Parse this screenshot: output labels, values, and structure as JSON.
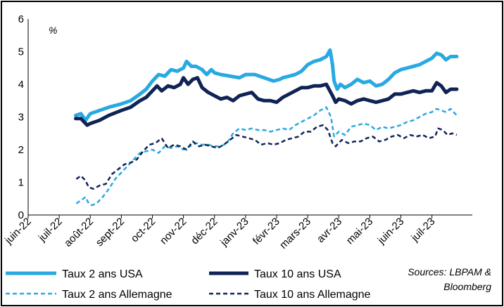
{
  "chart_data": {
    "type": "line",
    "title": "",
    "unit_label": "%",
    "ylim": [
      0,
      6
    ],
    "yticks": [
      "0",
      "1",
      "2",
      "3",
      "4",
      "5",
      "6"
    ],
    "x_tick_labels": [
      "juin-22",
      "juil-22",
      "août-22",
      "sept-22",
      "oct-22",
      "nov-22",
      "déc-22",
      "janv-23",
      "févr-23",
      "mars-23",
      "avr-23",
      "mai-23",
      "juin-23",
      "juil-23"
    ],
    "x_start_month": 0,
    "x_end_month": 14.3,
    "source": "Sources: LBPAM & Bloomberg",
    "source_lines": [
      "Sources: LBPAM &",
      "Bloomberg"
    ],
    "series": [
      {
        "name": "Taux 2 ans USA",
        "color": "#29A9E1",
        "style": "solid",
        "width": 5,
        "points": [
          [
            1.53,
            3.05
          ],
          [
            1.7,
            3.1
          ],
          [
            1.85,
            2.9
          ],
          [
            2.0,
            3.1
          ],
          [
            2.3,
            3.2
          ],
          [
            2.6,
            3.3
          ],
          [
            3.0,
            3.4
          ],
          [
            3.3,
            3.5
          ],
          [
            3.6,
            3.7
          ],
          [
            3.8,
            3.85
          ],
          [
            4.0,
            4.1
          ],
          [
            4.2,
            4.3
          ],
          [
            4.4,
            4.25
          ],
          [
            4.6,
            4.45
          ],
          [
            4.8,
            4.4
          ],
          [
            5.0,
            4.5
          ],
          [
            5.1,
            4.7
          ],
          [
            5.25,
            4.55
          ],
          [
            5.4,
            4.55
          ],
          [
            5.6,
            4.45
          ],
          [
            5.75,
            4.3
          ],
          [
            5.9,
            4.45
          ],
          [
            6.0,
            4.35
          ],
          [
            6.2,
            4.3
          ],
          [
            6.5,
            4.25
          ],
          [
            6.8,
            4.2
          ],
          [
            7.0,
            4.3
          ],
          [
            7.3,
            4.3
          ],
          [
            7.6,
            4.2
          ],
          [
            7.9,
            4.1
          ],
          [
            8.1,
            4.15
          ],
          [
            8.2,
            4.2
          ],
          [
            8.4,
            4.25
          ],
          [
            8.6,
            4.3
          ],
          [
            8.8,
            4.4
          ],
          [
            9.0,
            4.6
          ],
          [
            9.2,
            4.7
          ],
          [
            9.4,
            4.75
          ],
          [
            9.6,
            4.85
          ],
          [
            9.72,
            5.05
          ],
          [
            9.8,
            4.6
          ],
          [
            9.85,
            4.1
          ],
          [
            9.95,
            3.85
          ],
          [
            10.05,
            4.0
          ],
          [
            10.2,
            3.9
          ],
          [
            10.4,
            4.0
          ],
          [
            10.6,
            4.15
          ],
          [
            10.8,
            4.05
          ],
          [
            11.0,
            4.1
          ],
          [
            11.2,
            3.95
          ],
          [
            11.4,
            4.0
          ],
          [
            11.6,
            4.15
          ],
          [
            11.8,
            4.35
          ],
          [
            12.0,
            4.45
          ],
          [
            12.2,
            4.5
          ],
          [
            12.4,
            4.55
          ],
          [
            12.6,
            4.6
          ],
          [
            12.8,
            4.7
          ],
          [
            13.0,
            4.8
          ],
          [
            13.15,
            4.95
          ],
          [
            13.3,
            4.9
          ],
          [
            13.45,
            4.75
          ],
          [
            13.6,
            4.85
          ],
          [
            13.8,
            4.85
          ]
        ]
      },
      {
        "name": "Taux 10 ans USA",
        "color": "#0F2355",
        "style": "solid",
        "width": 5,
        "points": [
          [
            1.53,
            2.95
          ],
          [
            1.7,
            2.95
          ],
          [
            1.9,
            2.75
          ],
          [
            2.0,
            2.8
          ],
          [
            2.3,
            2.9
          ],
          [
            2.6,
            3.05
          ],
          [
            3.0,
            3.2
          ],
          [
            3.3,
            3.3
          ],
          [
            3.6,
            3.5
          ],
          [
            3.8,
            3.6
          ],
          [
            4.0,
            3.8
          ],
          [
            4.15,
            3.95
          ],
          [
            4.3,
            3.8
          ],
          [
            4.5,
            3.95
          ],
          [
            4.7,
            3.9
          ],
          [
            4.9,
            4.0
          ],
          [
            5.0,
            4.2
          ],
          [
            5.15,
            4.0
          ],
          [
            5.3,
            4.15
          ],
          [
            5.45,
            4.2
          ],
          [
            5.6,
            3.9
          ],
          [
            5.8,
            3.75
          ],
          [
            6.0,
            3.65
          ],
          [
            6.2,
            3.55
          ],
          [
            6.4,
            3.6
          ],
          [
            6.6,
            3.5
          ],
          [
            6.8,
            3.65
          ],
          [
            7.0,
            3.7
          ],
          [
            7.2,
            3.75
          ],
          [
            7.4,
            3.55
          ],
          [
            7.6,
            3.5
          ],
          [
            7.8,
            3.5
          ],
          [
            8.0,
            3.45
          ],
          [
            8.2,
            3.6
          ],
          [
            8.4,
            3.7
          ],
          [
            8.6,
            3.8
          ],
          [
            8.8,
            3.9
          ],
          [
            9.0,
            3.9
          ],
          [
            9.2,
            3.95
          ],
          [
            9.4,
            3.95
          ],
          [
            9.6,
            4.0
          ],
          [
            9.8,
            3.65
          ],
          [
            9.9,
            3.45
          ],
          [
            10.0,
            3.55
          ],
          [
            10.2,
            3.5
          ],
          [
            10.4,
            3.4
          ],
          [
            10.6,
            3.5
          ],
          [
            10.8,
            3.55
          ],
          [
            11.0,
            3.5
          ],
          [
            11.2,
            3.45
          ],
          [
            11.4,
            3.5
          ],
          [
            11.6,
            3.55
          ],
          [
            11.8,
            3.7
          ],
          [
            12.0,
            3.7
          ],
          [
            12.2,
            3.75
          ],
          [
            12.4,
            3.8
          ],
          [
            12.6,
            3.75
          ],
          [
            12.8,
            3.8
          ],
          [
            13.0,
            3.8
          ],
          [
            13.15,
            4.05
          ],
          [
            13.3,
            3.95
          ],
          [
            13.45,
            3.75
          ],
          [
            13.6,
            3.85
          ],
          [
            13.8,
            3.85
          ]
        ]
      },
      {
        "name": "Taux 2 ans Allemagne",
        "color": "#29A9E1",
        "style": "dashed",
        "width": 2.5,
        "points": [
          [
            1.55,
            0.35
          ],
          [
            1.7,
            0.45
          ],
          [
            1.85,
            0.55
          ],
          [
            1.95,
            0.35
          ],
          [
            2.05,
            0.3
          ],
          [
            2.2,
            0.35
          ],
          [
            2.4,
            0.55
          ],
          [
            2.6,
            0.8
          ],
          [
            2.8,
            1.1
          ],
          [
            3.0,
            1.3
          ],
          [
            3.2,
            1.5
          ],
          [
            3.4,
            1.7
          ],
          [
            3.6,
            1.9
          ],
          [
            3.8,
            1.95
          ],
          [
            4.0,
            2.0
          ],
          [
            4.2,
            1.9
          ],
          [
            4.4,
            2.1
          ],
          [
            4.6,
            2.05
          ],
          [
            4.8,
            2.1
          ],
          [
            5.0,
            2.0
          ],
          [
            5.2,
            2.1
          ],
          [
            5.4,
            2.2
          ],
          [
            5.6,
            2.15
          ],
          [
            5.8,
            2.15
          ],
          [
            6.0,
            2.1
          ],
          [
            6.2,
            2.1
          ],
          [
            6.4,
            2.2
          ],
          [
            6.6,
            2.5
          ],
          [
            6.8,
            2.65
          ],
          [
            7.0,
            2.6
          ],
          [
            7.2,
            2.65
          ],
          [
            7.4,
            2.6
          ],
          [
            7.6,
            2.6
          ],
          [
            7.8,
            2.55
          ],
          [
            8.0,
            2.6
          ],
          [
            8.2,
            2.65
          ],
          [
            8.4,
            2.6
          ],
          [
            8.6,
            2.75
          ],
          [
            8.8,
            2.85
          ],
          [
            9.0,
            2.95
          ],
          [
            9.2,
            3.05
          ],
          [
            9.4,
            3.2
          ],
          [
            9.6,
            3.3
          ],
          [
            9.75,
            3.0
          ],
          [
            9.85,
            2.4
          ],
          [
            10.0,
            2.55
          ],
          [
            10.2,
            2.45
          ],
          [
            10.4,
            2.7
          ],
          [
            10.6,
            2.75
          ],
          [
            10.8,
            2.8
          ],
          [
            11.0,
            2.75
          ],
          [
            11.2,
            2.6
          ],
          [
            11.4,
            2.7
          ],
          [
            11.6,
            2.65
          ],
          [
            11.8,
            2.7
          ],
          [
            12.0,
            2.75
          ],
          [
            12.2,
            2.85
          ],
          [
            12.4,
            2.9
          ],
          [
            12.6,
            3.0
          ],
          [
            12.8,
            3.1
          ],
          [
            13.0,
            3.15
          ],
          [
            13.15,
            3.25
          ],
          [
            13.3,
            3.2
          ],
          [
            13.45,
            3.15
          ],
          [
            13.6,
            3.25
          ],
          [
            13.8,
            3.05
          ]
        ]
      },
      {
        "name": "Taux 10 ans Allemagne",
        "color": "#0F2355",
        "style": "dashed",
        "width": 2.5,
        "points": [
          [
            1.55,
            1.1
          ],
          [
            1.7,
            1.2
          ],
          [
            1.85,
            1.05
          ],
          [
            1.95,
            0.85
          ],
          [
            2.1,
            0.8
          ],
          [
            2.3,
            0.9
          ],
          [
            2.5,
            0.95
          ],
          [
            2.7,
            1.25
          ],
          [
            2.9,
            1.4
          ],
          [
            3.1,
            1.55
          ],
          [
            3.3,
            1.6
          ],
          [
            3.5,
            1.7
          ],
          [
            3.7,
            1.95
          ],
          [
            3.9,
            2.15
          ],
          [
            4.1,
            2.2
          ],
          [
            4.3,
            2.35
          ],
          [
            4.5,
            2.05
          ],
          [
            4.7,
            2.15
          ],
          [
            4.9,
            2.1
          ],
          [
            5.1,
            2.0
          ],
          [
            5.3,
            2.25
          ],
          [
            5.5,
            2.1
          ],
          [
            5.7,
            2.15
          ],
          [
            5.9,
            2.1
          ],
          [
            6.1,
            2.05
          ],
          [
            6.3,
            2.15
          ],
          [
            6.5,
            2.3
          ],
          [
            6.7,
            2.45
          ],
          [
            6.9,
            2.4
          ],
          [
            7.1,
            2.35
          ],
          [
            7.3,
            2.3
          ],
          [
            7.5,
            2.15
          ],
          [
            7.7,
            2.2
          ],
          [
            7.9,
            2.15
          ],
          [
            8.1,
            2.2
          ],
          [
            8.3,
            2.3
          ],
          [
            8.5,
            2.35
          ],
          [
            8.7,
            2.4
          ],
          [
            8.9,
            2.55
          ],
          [
            9.1,
            2.55
          ],
          [
            9.3,
            2.7
          ],
          [
            9.5,
            2.75
          ],
          [
            9.65,
            2.6
          ],
          [
            9.8,
            2.2
          ],
          [
            9.9,
            2.1
          ],
          [
            10.1,
            2.3
          ],
          [
            10.3,
            2.2
          ],
          [
            10.5,
            2.25
          ],
          [
            10.7,
            2.25
          ],
          [
            10.9,
            2.35
          ],
          [
            11.1,
            2.4
          ],
          [
            11.3,
            2.25
          ],
          [
            11.5,
            2.3
          ],
          [
            11.7,
            2.4
          ],
          [
            11.9,
            2.45
          ],
          [
            12.1,
            2.35
          ],
          [
            12.3,
            2.45
          ],
          [
            12.5,
            2.4
          ],
          [
            12.7,
            2.45
          ],
          [
            12.9,
            2.35
          ],
          [
            13.1,
            2.4
          ],
          [
            13.2,
            2.65
          ],
          [
            13.35,
            2.6
          ],
          [
            13.5,
            2.45
          ],
          [
            13.65,
            2.5
          ],
          [
            13.8,
            2.45
          ]
        ]
      }
    ]
  }
}
